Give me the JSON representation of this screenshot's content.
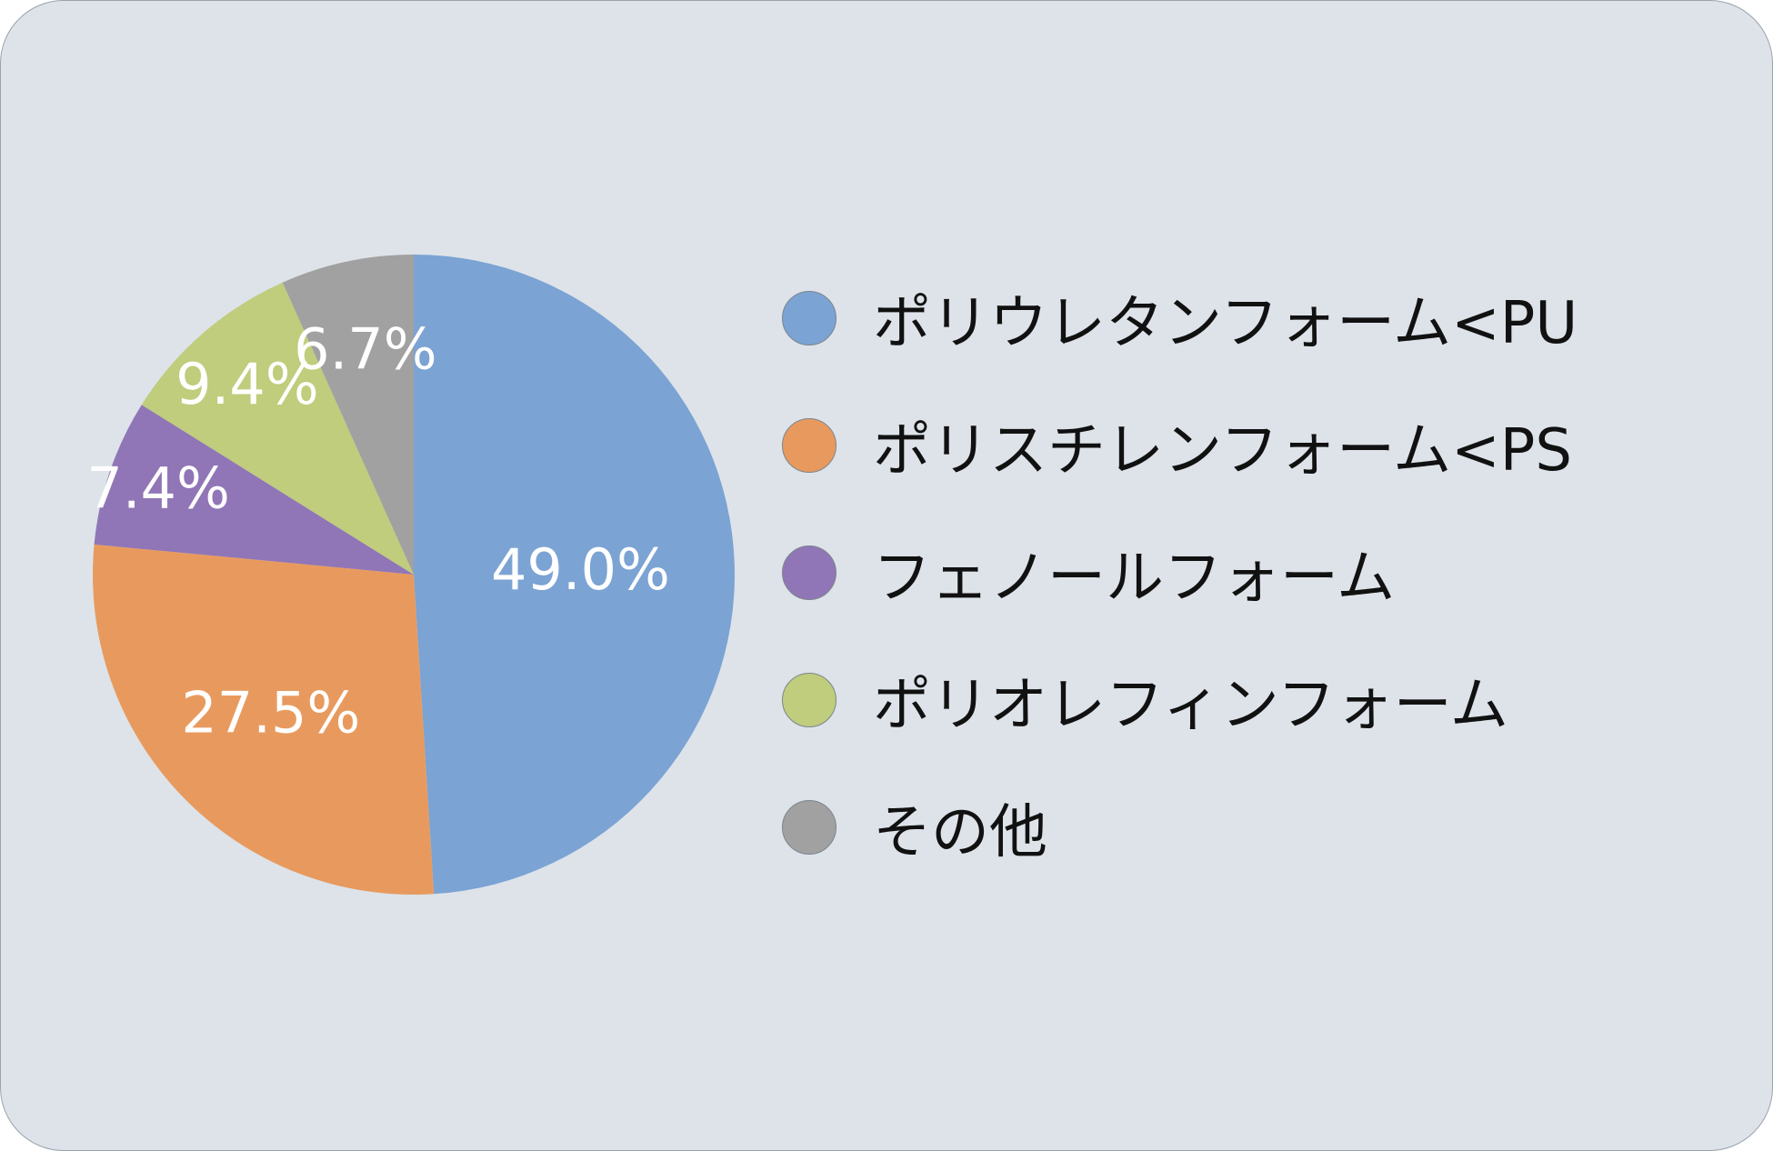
{
  "chart_data": {
    "type": "pie",
    "title": "",
    "legend_position": "right",
    "slices": [
      {
        "label": "ポリウレタンフォーム<PU",
        "value": 49.0,
        "value_label": "49.0%",
        "color": "#7ba3d3"
      },
      {
        "label": "ポリスチレンフォーム<PS",
        "value": 27.5,
        "value_label": "27.5%",
        "color": "#e89a5e"
      },
      {
        "label": "フェノールフォーム",
        "value": 7.4,
        "value_label": "7.4%",
        "color": "#9076b6"
      },
      {
        "label": "ポリオレフィンフォーム",
        "value": 9.4,
        "value_label": "9.4%",
        "color": "#bfcd7c"
      },
      {
        "label": "その他",
        "value": 6.7,
        "value_label": "6.7%",
        "color": "#a1a1a1"
      }
    ]
  }
}
